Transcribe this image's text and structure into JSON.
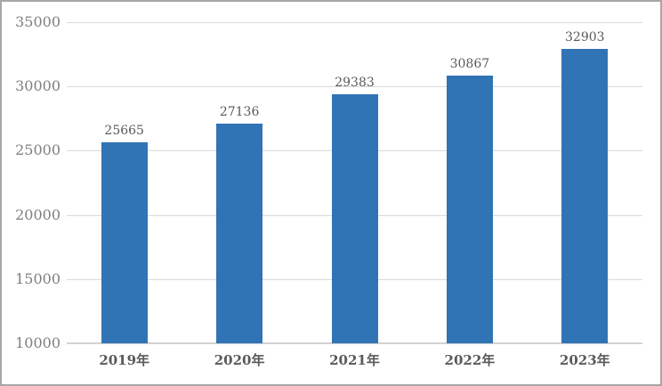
{
  "chart_data": {
    "type": "bar",
    "title": "",
    "xlabel": "",
    "ylabel": "",
    "categories": [
      "2019年",
      "2020年",
      "2021年",
      "2022年",
      "2023年"
    ],
    "values": [
      25665,
      27136,
      29383,
      30867,
      32903
    ],
    "data_labels": [
      "25665",
      "27136",
      "29383",
      "30867",
      "32903"
    ],
    "ylim": [
      10000,
      35000
    ],
    "yticks": [
      35000,
      30000,
      25000,
      20000,
      15000,
      10000
    ],
    "grid": true,
    "legend": false,
    "colors": {
      "bar": "#3174b5",
      "gridline": "#d9d9d9",
      "axis_line": "#d2d2d2",
      "ytick_label": "#7f7f7f",
      "data_label": "#595959",
      "category_label": "#595959",
      "background": "#ffffff",
      "frame_border": "#a6a6a6"
    }
  }
}
